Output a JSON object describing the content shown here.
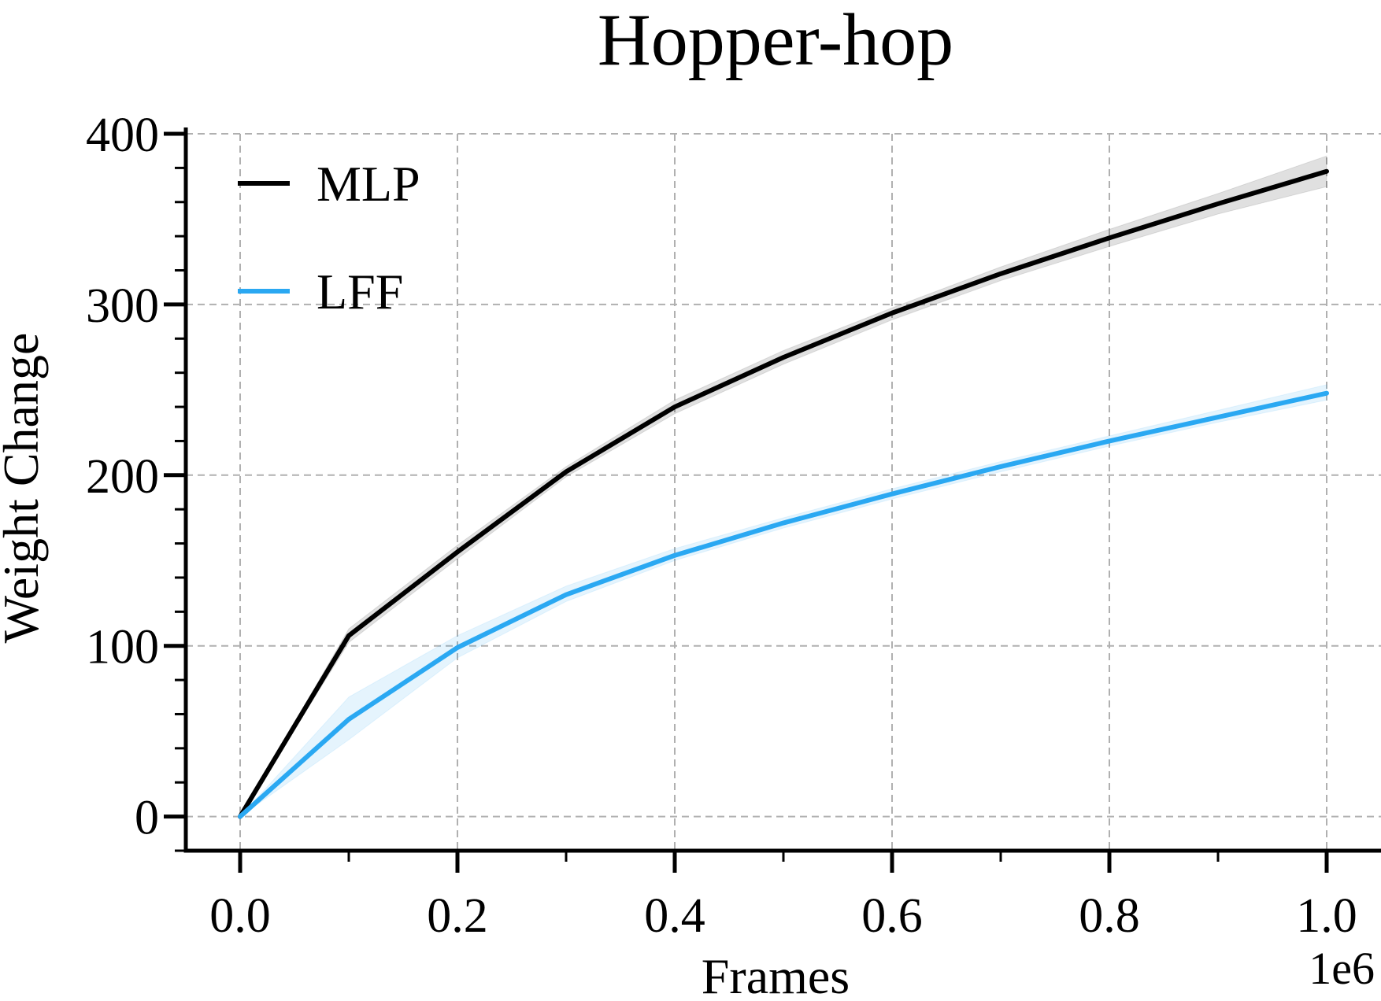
{
  "chart_data": {
    "type": "line",
    "title": "Hopper-hop",
    "xlabel": "Frames",
    "ylabel": "Weight Change",
    "x_offset_label": "1e6",
    "xlim": [
      -0.05,
      1.05
    ],
    "ylim": [
      -20,
      400
    ],
    "x_ticks": [
      0.0,
      0.2,
      0.4,
      0.6,
      0.8,
      1.0
    ],
    "x_tick_labels": [
      "0.0",
      "0.2",
      "0.4",
      "0.6",
      "0.8",
      "1.0"
    ],
    "y_ticks": [
      0,
      100,
      200,
      300,
      400
    ],
    "y_tick_labels": [
      "0",
      "100",
      "200",
      "300",
      "400"
    ],
    "grid": true,
    "legend_position": "top-left",
    "x": [
      0.0,
      0.1,
      0.2,
      0.3,
      0.4,
      0.5,
      0.6,
      0.7,
      0.8,
      0.9,
      1.0
    ],
    "series": [
      {
        "name": "MLP",
        "color": "#000000",
        "values": [
          0,
          106,
          155,
          202,
          240,
          269,
          295,
          318,
          339,
          359,
          378
        ],
        "lower": [
          0,
          102,
          151,
          199,
          236,
          265,
          291,
          314,
          334,
          353,
          369
        ],
        "upper": [
          0,
          110,
          159,
          205,
          244,
          273,
          298,
          322,
          344,
          365,
          387
        ]
      },
      {
        "name": "LFF",
        "color": "#2aa8f2",
        "values": [
          0,
          57,
          99,
          130,
          153,
          172,
          189,
          205,
          220,
          234,
          248
        ],
        "lower": [
          0,
          45,
          93,
          126,
          150,
          169,
          186,
          202,
          217,
          231,
          244
        ],
        "upper": [
          0,
          70,
          106,
          135,
          157,
          175,
          192,
          208,
          223,
          238,
          253
        ]
      }
    ]
  }
}
